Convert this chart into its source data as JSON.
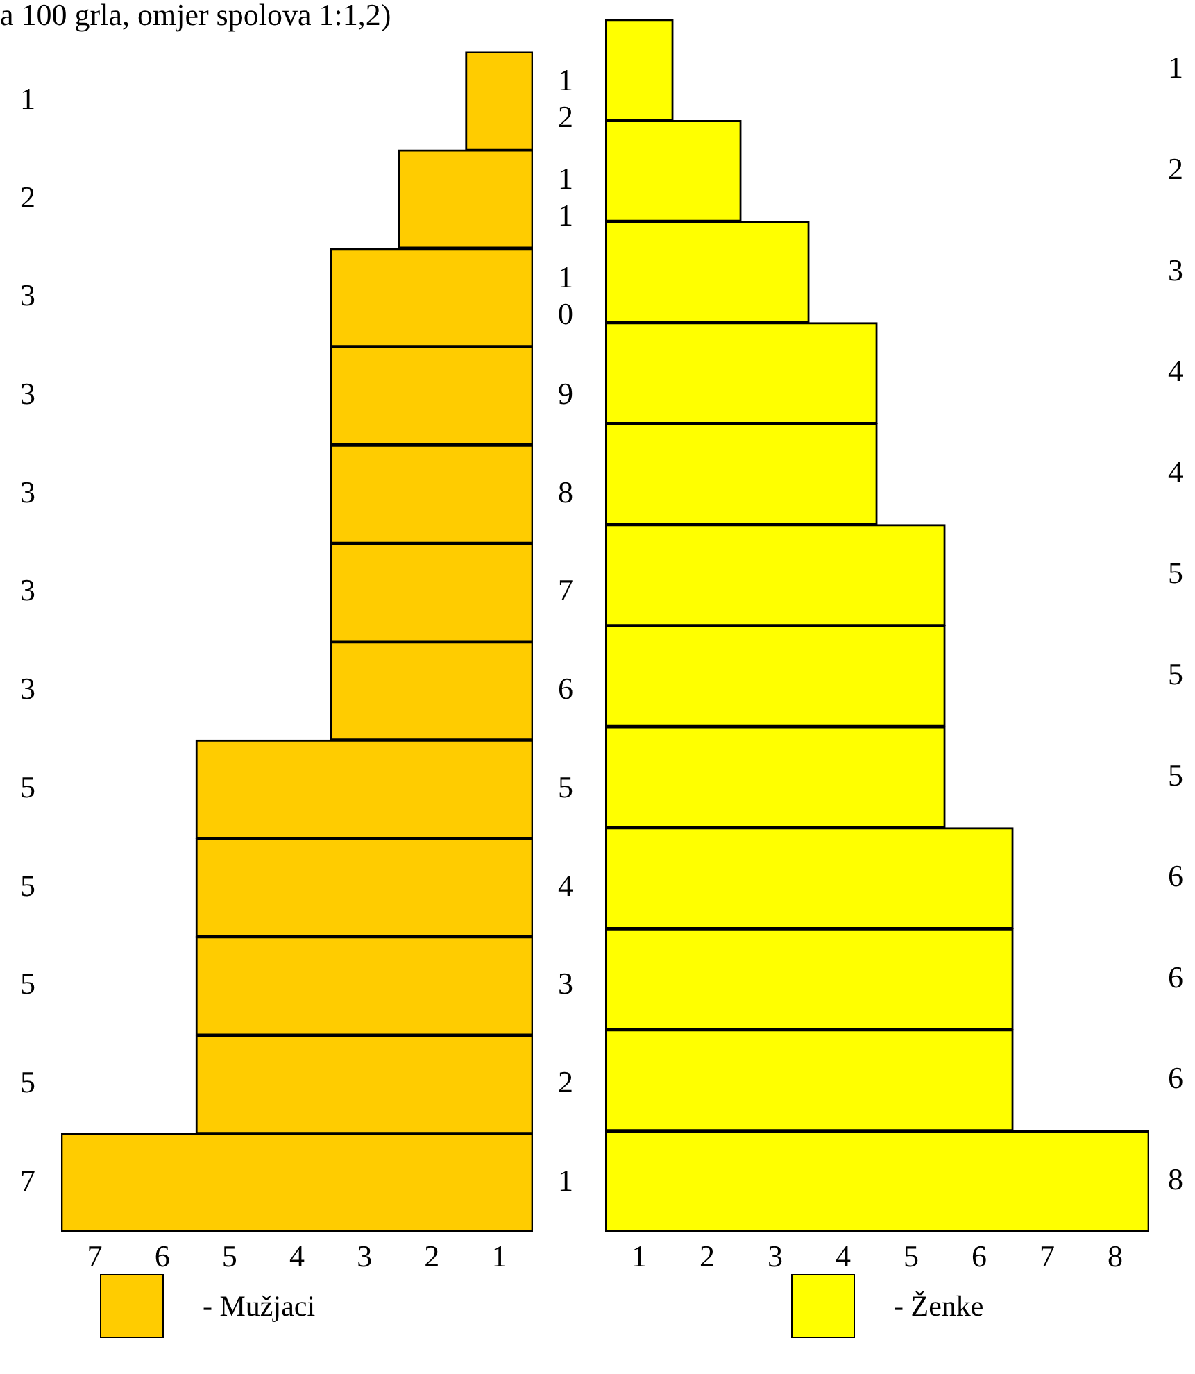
{
  "chart_data": [
    {
      "type": "bar",
      "orientation": "horizontal",
      "title": "a 100 grla, omjer spolova 1:1,2)",
      "categories": [
        "12",
        "11",
        "10",
        "9",
        "8",
        "7",
        "6",
        "5",
        "4",
        "3",
        "2",
        "1"
      ],
      "series": [
        {
          "name": "- Mužjaci",
          "color": "#ffcc00",
          "values": [
            1,
            2,
            3,
            3,
            3,
            3,
            3,
            5,
            5,
            5,
            5,
            7
          ]
        }
      ],
      "xlim": [
        7,
        0
      ],
      "xticks": [
        {
          "value": 6.5,
          "label": "7"
        },
        {
          "value": 5.5,
          "label": "6"
        },
        {
          "value": 4.5,
          "label": "5"
        },
        {
          "value": 3.5,
          "label": "4"
        },
        {
          "value": 2.5,
          "label": "3"
        },
        {
          "value": 1.5,
          "label": "2"
        },
        {
          "value": 0.5,
          "label": "1"
        }
      ],
      "data_labels": true,
      "legend": "bottom",
      "grid": false
    },
    {
      "type": "bar",
      "orientation": "horizontal",
      "categories": [
        "12",
        "11",
        "10",
        "9",
        "8",
        "7",
        "6",
        "5",
        "4",
        "3",
        "2",
        "1"
      ],
      "series": [
        {
          "name": "- Ženke",
          "color": "#ffff00",
          "values": [
            1,
            2,
            3,
            4,
            4,
            5,
            5,
            5,
            6,
            6,
            6,
            8
          ]
        }
      ],
      "xlim": [
        0,
        8
      ],
      "xticks": [
        {
          "value": 0.5,
          "label": "1"
        },
        {
          "value": 1.5,
          "label": "2"
        },
        {
          "value": 2.5,
          "label": "3"
        },
        {
          "value": 3.5,
          "label": "4"
        },
        {
          "value": 4.5,
          "label": "5"
        },
        {
          "value": 5.5,
          "label": "6"
        },
        {
          "value": 6.5,
          "label": "7"
        },
        {
          "value": 7.5,
          "label": "8"
        }
      ],
      "data_labels": true,
      "legend": "bottom",
      "grid": false,
      "tick_labels": "x"
    }
  ]
}
